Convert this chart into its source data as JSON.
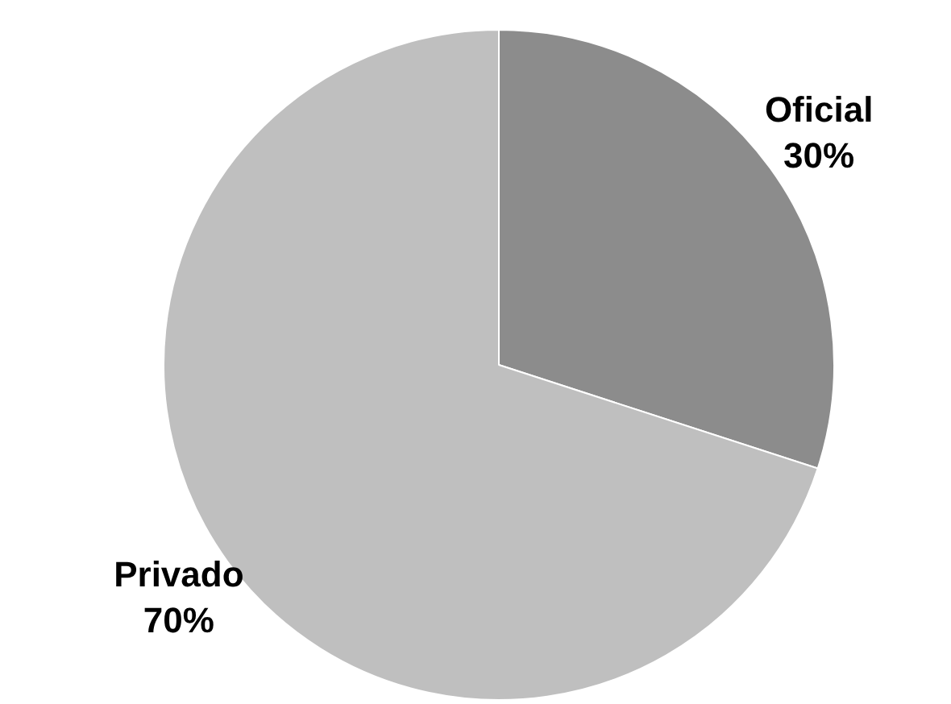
{
  "chart_data": {
    "type": "pie",
    "categories": [
      "Oficial",
      "Privado"
    ],
    "values": [
      30,
      70
    ],
    "colors": [
      "#8c8c8c",
      "#bfbfbf"
    ],
    "value_labels": [
      "30%",
      "70%"
    ]
  }
}
